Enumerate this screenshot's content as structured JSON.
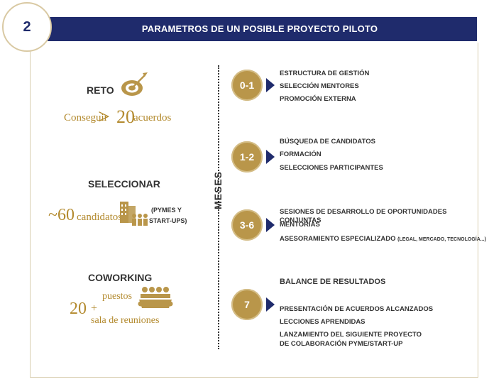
{
  "header": {
    "number": "2",
    "title": "PARAMETROS DE UN POSIBLE PROYECTO PILOTO"
  },
  "reto": {
    "title": "RETO",
    "line_prefix": "Conseguir",
    "symbol": ">",
    "number": "20",
    "line_suffix": "acuerdos"
  },
  "seleccionar": {
    "title": "SELECCIONAR",
    "prefix": "~60",
    "word": "candidatos",
    "note_line1": "(PYMES Y",
    "note_line2": "START-UPS)"
  },
  "coworking": {
    "title": "COWORKING",
    "number": "20",
    "line1": "puestos",
    "plus": "+",
    "line3": "sala de reuniones"
  },
  "axis_label": "MESES",
  "steps": [
    {
      "label": "0-1",
      "items": [
        "ESTRUCTURA DE GESTIÓN",
        "SELECCIÓN MENTORES",
        "PROMOCIÓN EXTERNA"
      ]
    },
    {
      "label": "1-2",
      "items": [
        "BÚSQUEDA DE CANDIDATOS",
        "FORMACIÓN",
        "SELECCIONES PARTICIPANTES"
      ]
    },
    {
      "label": "3-6",
      "items": [
        "SESIONES DE DESARROLLO DE OPORTUNIDADES CONJUNTAS",
        "MENTORÍAS",
        "ASESORAMIENTO ESPECIALIZADO"
      ],
      "item3_note": "(LEGAL, MERCADO, TECNOLOGÍA...)"
    },
    {
      "label": "7",
      "heading": "BALANCE DE RESULTADOS",
      "items": [
        "PRESENTACIÓN DE ACUERDOS ALCANZADOS",
        "LECCIONES APRENDIDAS",
        "LANZAMIENTO DEL SIGUIENTE PROYECTO",
        "DE COLABORACIÓN PYME/START-UP"
      ]
    }
  ],
  "colors": {
    "navy": "#1f2b6c",
    "gold": "#b9964a"
  }
}
